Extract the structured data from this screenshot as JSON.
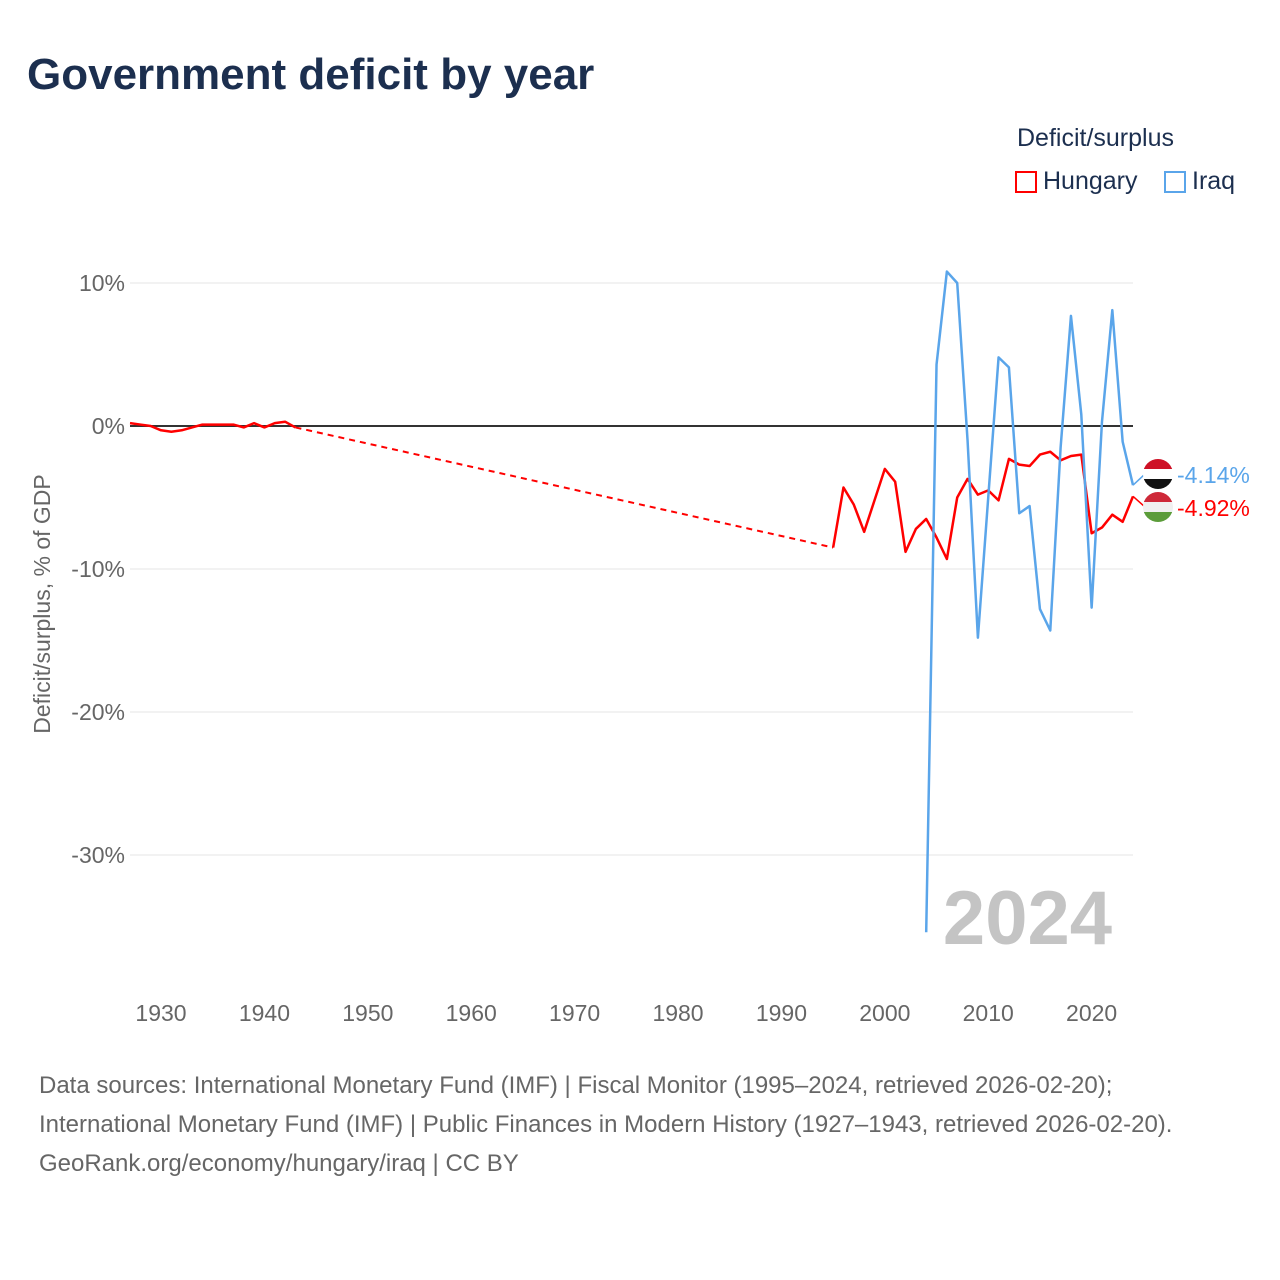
{
  "title": "Government deficit by year",
  "legend": {
    "title": "Deficit/surplus",
    "items": [
      {
        "label": "Hungary",
        "color": "#ff0000"
      },
      {
        "label": "Iraq",
        "color": "#5aa5ea"
      }
    ]
  },
  "watermark_year": "2024",
  "footer": {
    "sources": "Data sources: International Monetary Fund (IMF) | Fiscal Monitor (1995–2024, retrieved 2026-02-20); International Monetary Fund (IMF) | Public Finances in Modern History (1927–1943, retrieved 2026-02-20).",
    "credit": "GeoRank.org/economy/hungary/iraq | CC BY"
  },
  "chart_data": {
    "type": "line",
    "title": "Government deficit by year",
    "xlabel": "",
    "ylabel": "Deficit/surplus, % of GDP",
    "xlim": [
      1927,
      2024
    ],
    "ylim": [
      -35.4,
      10.8
    ],
    "xticks": [
      1930,
      1940,
      1950,
      1960,
      1970,
      1980,
      1990,
      2000,
      2010,
      2020
    ],
    "yticks": [
      {
        "v": 10,
        "label": "10%"
      },
      {
        "v": 0,
        "label": "0%"
      },
      {
        "v": -10,
        "label": "-10%"
      },
      {
        "v": -20,
        "label": "-20%"
      },
      {
        "v": -30,
        "label": "-30%"
      }
    ],
    "series": [
      {
        "name": "Hungary",
        "color": "#ff0000",
        "end_label": "-4.92%",
        "gap": [
          1943,
          1995
        ],
        "x": [
          1927,
          1928,
          1929,
          1930,
          1931,
          1932,
          1933,
          1934,
          1935,
          1936,
          1937,
          1938,
          1939,
          1940,
          1941,
          1942,
          1943,
          1995,
          1996,
          1997,
          1998,
          1999,
          2000,
          2001,
          2002,
          2003,
          2004,
          2005,
          2006,
          2007,
          2008,
          2009,
          2010,
          2011,
          2012,
          2013,
          2014,
          2015,
          2016,
          2017,
          2018,
          2019,
          2020,
          2021,
          2022,
          2023,
          2024
        ],
        "y": [
          0.2,
          0.1,
          0,
          -0.3,
          -0.4,
          -0.3,
          -0.1,
          0.1,
          0.1,
          0.1,
          0.1,
          -0.1,
          0.2,
          -0.1,
          0.2,
          0.3,
          -0.1,
          -8.5,
          -4.3,
          -5.5,
          -7.4,
          -5.2,
          -3.0,
          -3.9,
          -8.8,
          -7.2,
          -6.5,
          -7.8,
          -9.3,
          -5.0,
          -3.7,
          -4.8,
          -4.5,
          -5.2,
          -2.3,
          -2.7,
          -2.8,
          -2.0,
          -1.8,
          -2.4,
          -2.1,
          -2.0,
          -7.5,
          -7.1,
          -6.2,
          -6.7,
          -4.92
        ]
      },
      {
        "name": "Iraq",
        "color": "#5aa5ea",
        "end_label": "-4.14%",
        "x": [
          2004,
          2005,
          2006,
          2007,
          2008,
          2009,
          2010,
          2011,
          2012,
          2013,
          2014,
          2015,
          2016,
          2017,
          2018,
          2019,
          2020,
          2021,
          2022,
          2023,
          2024
        ],
        "y": [
          -35.4,
          4.3,
          10.8,
          10.0,
          -1.0,
          -14.8,
          -5.0,
          4.8,
          4.1,
          -6.1,
          -5.6,
          -12.8,
          -14.3,
          -1.5,
          7.7,
          0.8,
          -12.7,
          0.3,
          8.1,
          -1.1,
          -4.14
        ]
      }
    ]
  }
}
